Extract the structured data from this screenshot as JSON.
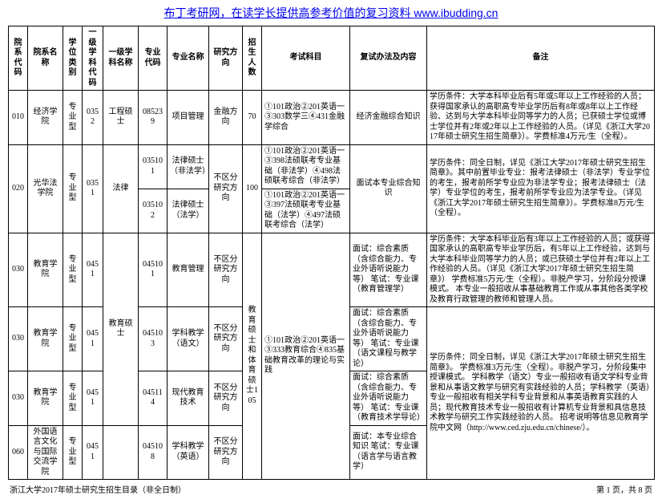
{
  "top_link": "布丁考研网，在读学长提供高参考价值的复习资料  www.ibudding.cn",
  "headers": {
    "col1": "院系代码",
    "col2": "院系名称",
    "col3": "学位类别",
    "col4": "一级学科代码",
    "col5": "一级学科名称",
    "col6": "专业代码",
    "col7": "专业名称",
    "col8": "研究方向",
    "col9": "招生人数",
    "col10": "考试科目",
    "col11": "复试办法及内容",
    "col12": "备注"
  },
  "rows": {
    "r1": {
      "dept_code": "010",
      "dept_name": "经济学院",
      "degree_type": "专业型",
      "disc_code": "0352",
      "disc_name": "工程硕士",
      "maj_code": "085239",
      "maj_name": "项目管理",
      "direction": "金融方向",
      "enroll": "70",
      "exam": "①101政治②201英语一③303数学三④431金融学综合",
      "retest": "经济金融综合知识",
      "note": "学历条件：大学本科毕业后有5年或5年以上工作经验的人员；获得国家承认的高职高专毕业学历后有8年或8年以上工作经验、达到与大学本科毕业同等学力的人员；已获硕士学位或博士学位并有2年或2年以上工作经验的人员。（详见《浙江大学2017年硕士研究生招生简章》）。学费标准4万元/生（全程）。"
    },
    "r2": {
      "dept_code": "020",
      "dept_name": "光华法学院",
      "degree_type": "专业型",
      "disc_code": "0351",
      "disc_name": "法律",
      "maj_code_a": "035101",
      "maj_name_a": "法律硕士（非法学）",
      "maj_code_b": "035102",
      "maj_name_b": "法律硕士（法学）",
      "direction": "不区分研究方向",
      "enroll": "100",
      "exam_a": "①101政治②201英语一③398法硕联考专业基础（非法学）④498法硕联考综合（非法学）",
      "exam_b": "①101政治②201英语一③397法硕联考专业基础（法学）④497法硕联考综合（法学）",
      "retest": "面试本专业综合知识",
      "note": "学历条件：同全日制，详见《浙江大学2017年硕士研究生招生简章》。其中前置毕业专业：报考法律硕士（非法学）专业学位的考生，报考前所学专业应为非法学专业；报考法律硕士（法学）专业学位的考生，报考前所学专业应为法学专业。（详见《浙江大学2017年硕士研究生招生简章》）。学费标准8万元/生（全程）。"
    },
    "r3": {
      "dept_code": "030",
      "dept_name": "教育学院",
      "degree_type": "专业型",
      "disc_code": "0451",
      "maj_code": "045101",
      "maj_name": "教育管理",
      "direction": "不区分研究方向",
      "retest": "面试：综合素质（含综合能力、专业外语听说能力等）\n笔试：专业课（教育管理学）",
      "note": "学历条件：大学本科毕业后有3年以上工作经验的人员；或获得国家承认的高职高专毕业学历后，有5年以上工作经验，达到与大学本科毕业同等学力的人员；或已获硕士学位并有2年以上工作经验的人员。（详见《浙江大学2017年硕士研究生招生简章》）\n学费标准5万元/生（全程）。非脱产学习，分阶段分授课模式。\n本专业一般招收从事基础教育工作或从事其他各类学校及教育行政管理的教师和管理人员。"
    },
    "r4": {
      "dept_code": "030",
      "dept_name": "教育学院",
      "degree_type": "专业型",
      "disc_code": "0451",
      "disc_name": "教育硕士",
      "maj_code": "045103",
      "maj_name": "学科教学（语文）",
      "direction": "不区分研究方向",
      "enroll_group": "教育硕士和体育硕士105",
      "exam_group": "①101政治②201英语一③333教育综合④835基础教育改革的理论与实践",
      "retest": "面试：综合素质（含综合能力、专业外语听说能力等）\n笔试：专业课（语文课程与教学论）",
      "note_45": "学历条件：同全日制，详见《浙江大学2017年硕士研究生招生简章》。\n学费标准3万元/生（全程）。非脱产学习，分阶段集中授课模式。\n学科教学（语文）专业一般招收有语文学科专业背景和从事语文教学与研究有实践经验的人员；学科教学（英语）专业一般招收有相关学科专业背景和从事英语教育实践的人员；现代教育技术专业一般招收有计算机专业背景和具信息技术教学与研究工作实践经验的人员。\n招考说明等信息见教育学院中文网（http://www.ced.zju.edu.cn/chinese/）。"
    },
    "r5": {
      "dept_code": "030",
      "dept_name": "教育学院",
      "degree_type": "专业型",
      "disc_code": "0451",
      "maj_code": "045114",
      "maj_name": "现代教育技术",
      "direction": "不区分研究方向",
      "retest": "面试：综合素质（含综合能力、专业外语听说能力等）\n笔试：专业课（教育技术学导论）"
    },
    "r6": {
      "dept_code": "060",
      "dept_name": "外国语言文化与国际交流学院",
      "degree_type": "专业型",
      "disc_code": "0451",
      "maj_code": "045108",
      "maj_name": "学科教学（英语）",
      "direction": "不区分研究方向",
      "retest": "面试：本专业综合知识\n笔试：专业课（语言学与语言教学）"
    }
  },
  "footer_left": "浙江大学2017年硕士研究生招生目录（非全日制）",
  "footer_right": "第 1 页，共 8 页",
  "colwidths": {
    "c1": "24",
    "c2": "44",
    "c3": "24",
    "c4": "26",
    "c5": "44",
    "c6": "36",
    "c7": "52",
    "c8": "42",
    "c9": "24",
    "c10": "110",
    "c11": "96",
    "c12": "284"
  }
}
